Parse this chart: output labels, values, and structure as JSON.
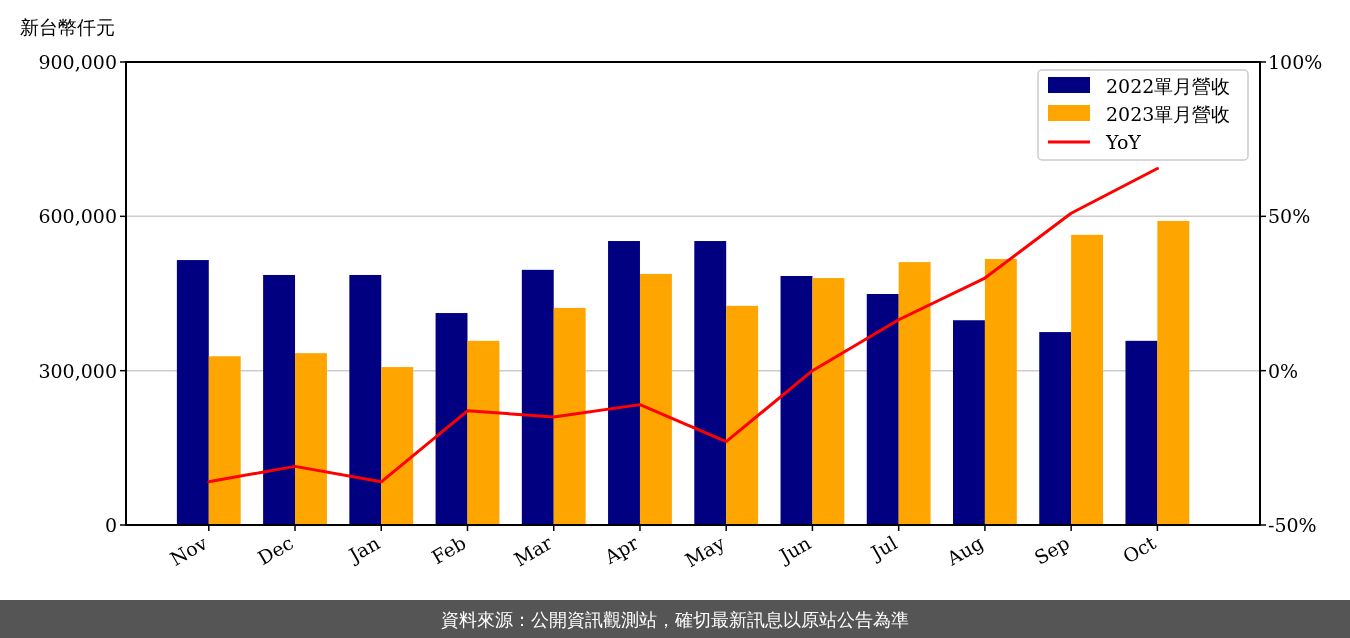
{
  "chart_data": {
    "type": "bar",
    "ylabel": "新台幣仟元",
    "categories": [
      "Nov",
      "Dec",
      "Jan",
      "Feb",
      "Mar",
      "Apr",
      "May",
      "Jun",
      "Jul",
      "Aug",
      "Sep",
      "Oct"
    ],
    "series": [
      {
        "name": "2022單月營收",
        "color": "#000080",
        "values": [
          515000,
          486000,
          486000,
          412000,
          496000,
          552000,
          552000,
          484000,
          449000,
          398000,
          375000,
          358000
        ]
      },
      {
        "name": "2023單月營收",
        "color": "#ffa500",
        "values": [
          328000,
          334000,
          307000,
          358000,
          422000,
          488000,
          426000,
          480000,
          511000,
          517000,
          564000,
          591000
        ]
      },
      {
        "name": "YoY",
        "type": "line",
        "axis": "y2",
        "color": "#ff0000",
        "values": [
          -36,
          -31,
          -36,
          -13,
          -15,
          -11,
          -23,
          0,
          16.5,
          30,
          51,
          65.5
        ]
      }
    ],
    "ylim": [
      0,
      900000
    ],
    "yticks": [
      {
        "value": 0,
        "label": "0"
      },
      {
        "value": 300000,
        "label": "300,000"
      },
      {
        "value": 600000,
        "label": "600,000"
      },
      {
        "value": 900000,
        "label": "900,000"
      }
    ],
    "y2lim": [
      -50,
      100
    ],
    "y2ticks": [
      {
        "value": -50,
        "label": "-50%"
      },
      {
        "value": 0,
        "label": "0%"
      },
      {
        "value": 50,
        "label": "50%"
      },
      {
        "value": 100,
        "label": "100%"
      }
    ],
    "grid": "y",
    "legend": "top right",
    "annotations": [
      "資料來源：公開資訊觀測站，確切最新訊息以原站公告為準"
    ]
  }
}
